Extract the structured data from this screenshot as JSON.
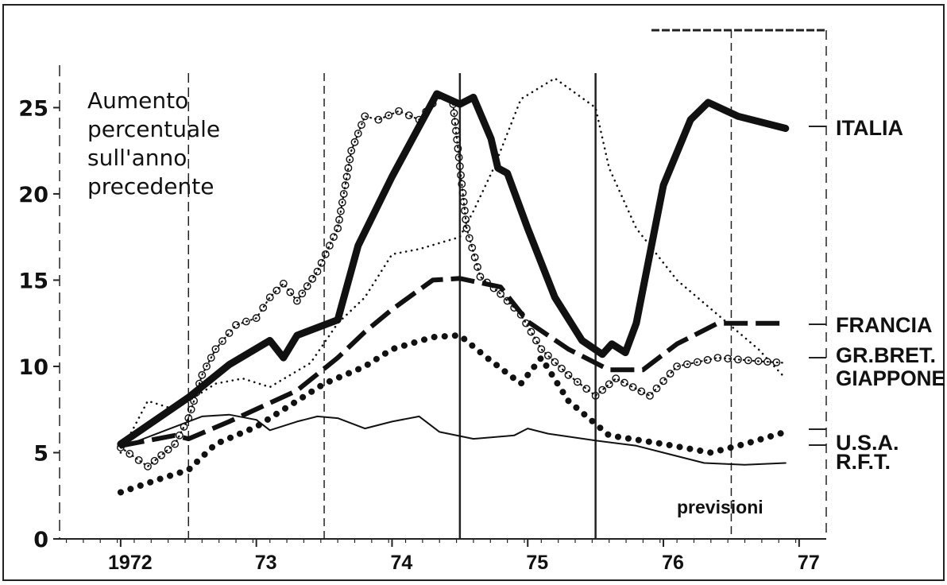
{
  "chart_data": {
    "type": "line",
    "ylabel_lines": [
      "Aumento",
      "percentuale",
      "sull'anno",
      "precedente"
    ],
    "y_ticks": [
      "0",
      "5",
      "10",
      "15",
      "20",
      "25"
    ],
    "x_ticks": [
      {
        "label": "1972",
        "x": 1972.0
      },
      {
        "label": "73",
        "x": 1973.0
      },
      {
        "label": "74",
        "x": 1974.0
      },
      {
        "label": "75",
        "x": 1975.0
      },
      {
        "label": "76",
        "x": 1976.0
      },
      {
        "label": "77",
        "x": 1977.0
      }
    ],
    "xlim": [
      1971.55,
      1977.2
    ],
    "ylim": [
      0,
      27
    ],
    "annotation": "previsioni",
    "series": [
      {
        "name": "ITALIA",
        "color": "#111111",
        "style": "thick",
        "points": [
          [
            1972.0,
            5.5
          ],
          [
            1972.5,
            8.2
          ],
          [
            1972.8,
            10.1
          ],
          [
            1973.1,
            11.5
          ],
          [
            1973.2,
            10.5
          ],
          [
            1973.3,
            11.8
          ],
          [
            1973.6,
            12.7
          ],
          [
            1973.75,
            17.0
          ],
          [
            1974.0,
            21.0
          ],
          [
            1974.33,
            25.8
          ],
          [
            1974.5,
            25.2
          ],
          [
            1974.6,
            25.6
          ],
          [
            1974.73,
            23.2
          ],
          [
            1974.78,
            21.5
          ],
          [
            1974.85,
            21.2
          ],
          [
            1975.0,
            18.0
          ],
          [
            1975.2,
            14.0
          ],
          [
            1975.4,
            11.5
          ],
          [
            1975.55,
            10.7
          ],
          [
            1975.62,
            11.3
          ],
          [
            1975.72,
            10.8
          ],
          [
            1975.8,
            12.5
          ],
          [
            1976.0,
            20.5
          ],
          [
            1976.2,
            24.3
          ],
          [
            1976.33,
            25.3
          ],
          [
            1976.55,
            24.5
          ],
          [
            1976.9,
            23.8
          ]
        ]
      },
      {
        "name": "FRANCIA",
        "color": "#111111",
        "style": "dash",
        "points": [
          [
            1972.0,
            5.4
          ],
          [
            1972.4,
            6.0
          ],
          [
            1972.5,
            5.8
          ],
          [
            1972.8,
            6.8
          ],
          [
            1973.3,
            8.6
          ],
          [
            1973.6,
            10.5
          ],
          [
            1973.8,
            12.0
          ],
          [
            1974.0,
            13.3
          ],
          [
            1974.3,
            15.0
          ],
          [
            1974.5,
            15.1
          ],
          [
            1974.8,
            14.6
          ],
          [
            1975.0,
            12.6
          ],
          [
            1975.3,
            11.0
          ],
          [
            1975.6,
            9.8
          ],
          [
            1975.85,
            9.8
          ],
          [
            1976.1,
            11.3
          ],
          [
            1976.4,
            12.5
          ],
          [
            1976.9,
            12.5
          ]
        ]
      },
      {
        "name": "GR.BRET.",
        "color": "#111111",
        "style": "ring",
        "points": [
          [
            1972.0,
            5.3
          ],
          [
            1972.2,
            4.2
          ],
          [
            1972.4,
            5.5
          ],
          [
            1972.5,
            7.0
          ],
          [
            1972.6,
            9.5
          ],
          [
            1972.7,
            11.0
          ],
          [
            1972.85,
            12.4
          ],
          [
            1973.0,
            12.8
          ],
          [
            1973.1,
            14.0
          ],
          [
            1973.2,
            14.8
          ],
          [
            1973.3,
            13.8
          ],
          [
            1973.45,
            15.5
          ],
          [
            1973.6,
            18.0
          ],
          [
            1973.7,
            22.5
          ],
          [
            1973.8,
            24.5
          ],
          [
            1973.9,
            24.3
          ],
          [
            1974.05,
            24.8
          ],
          [
            1974.2,
            24.3
          ],
          [
            1974.35,
            25.7
          ],
          [
            1974.45,
            25.2
          ],
          [
            1974.55,
            18.0
          ],
          [
            1974.65,
            15.2
          ],
          [
            1974.8,
            14.2
          ],
          [
            1974.95,
            13.0
          ],
          [
            1975.1,
            11.0
          ],
          [
            1975.3,
            9.5
          ],
          [
            1975.5,
            8.3
          ],
          [
            1975.65,
            9.3
          ],
          [
            1975.9,
            8.3
          ],
          [
            1976.1,
            10.0
          ],
          [
            1976.4,
            10.5
          ],
          [
            1976.7,
            10.3
          ],
          [
            1976.9,
            10.2
          ]
        ]
      },
      {
        "name": "GIAPPONE",
        "color": "#111111",
        "style": "dot-fine",
        "points": [
          [
            1972.0,
            5.0
          ],
          [
            1972.2,
            8.0
          ],
          [
            1972.4,
            7.5
          ],
          [
            1972.7,
            9.0
          ],
          [
            1972.9,
            9.3
          ],
          [
            1973.1,
            8.8
          ],
          [
            1973.4,
            10.2
          ],
          [
            1973.6,
            12.5
          ],
          [
            1973.8,
            14.0
          ],
          [
            1974.0,
            16.5
          ],
          [
            1974.2,
            16.8
          ],
          [
            1974.5,
            17.5
          ],
          [
            1974.6,
            19.0
          ],
          [
            1974.75,
            21.5
          ],
          [
            1974.95,
            25.5
          ],
          [
            1975.2,
            26.7
          ],
          [
            1975.5,
            25.0
          ],
          [
            1975.6,
            21.5
          ],
          [
            1975.8,
            18.0
          ],
          [
            1976.1,
            15.0
          ],
          [
            1976.4,
            13.0
          ],
          [
            1976.7,
            11.0
          ],
          [
            1976.9,
            9.3
          ]
        ]
      },
      {
        "name": "U.S.A.",
        "color": "#111111",
        "style": "dot-bold",
        "points": [
          [
            1972.0,
            2.7
          ],
          [
            1972.3,
            3.5
          ],
          [
            1972.5,
            4.0
          ],
          [
            1972.7,
            5.5
          ],
          [
            1973.0,
            6.5
          ],
          [
            1973.2,
            7.5
          ],
          [
            1973.5,
            9.0
          ],
          [
            1973.8,
            10.0
          ],
          [
            1974.0,
            11.0
          ],
          [
            1974.3,
            11.7
          ],
          [
            1974.5,
            11.8
          ],
          [
            1974.7,
            10.5
          ],
          [
            1974.95,
            9.0
          ],
          [
            1975.1,
            10.5
          ],
          [
            1975.3,
            8.0
          ],
          [
            1975.6,
            6.0
          ],
          [
            1976.0,
            5.5
          ],
          [
            1976.35,
            5.0
          ],
          [
            1976.6,
            5.5
          ],
          [
            1976.9,
            6.2
          ]
        ]
      },
      {
        "name": "R.F.T.",
        "color": "#111111",
        "style": "thin",
        "points": [
          [
            1972.0,
            5.3
          ],
          [
            1972.3,
            6.2
          ],
          [
            1972.6,
            7.1
          ],
          [
            1972.8,
            7.2
          ],
          [
            1973.0,
            6.9
          ],
          [
            1973.1,
            6.3
          ],
          [
            1973.3,
            6.8
          ],
          [
            1973.45,
            7.1
          ],
          [
            1973.6,
            7.0
          ],
          [
            1973.8,
            6.4
          ],
          [
            1974.0,
            6.8
          ],
          [
            1974.2,
            7.1
          ],
          [
            1974.35,
            6.2
          ],
          [
            1974.6,
            5.8
          ],
          [
            1974.9,
            6.0
          ],
          [
            1975.0,
            6.4
          ],
          [
            1975.15,
            6.1
          ],
          [
            1975.5,
            5.7
          ],
          [
            1975.8,
            5.4
          ],
          [
            1976.0,
            5.0
          ],
          [
            1976.3,
            4.4
          ],
          [
            1976.6,
            4.3
          ],
          [
            1976.9,
            4.4
          ]
        ]
      }
    ]
  }
}
